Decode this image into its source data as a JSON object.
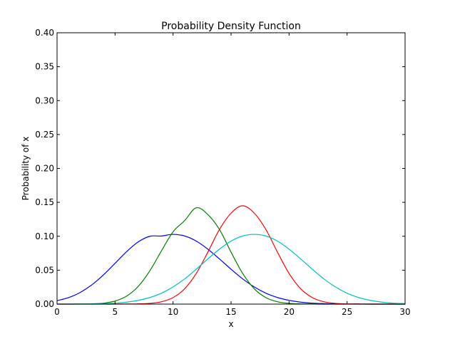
{
  "chart_data": {
    "type": "line",
    "title": "Probability Density Function",
    "xlabel": "x",
    "ylabel": "Probability of x",
    "xlim": [
      0,
      30
    ],
    "ylim": [
      0,
      0.4
    ],
    "xticks": [
      "0",
      "5",
      "10",
      "15",
      "20",
      "25",
      "30"
    ],
    "yticks": [
      "0.00",
      "0.05",
      "0.10",
      "0.15",
      "0.20",
      "0.25",
      "0.30",
      "0.35",
      "0.40"
    ],
    "grid": false,
    "legend": null,
    "x": [
      0,
      1,
      2,
      3,
      4,
      5,
      6,
      7,
      8,
      9,
      10,
      11,
      12,
      13,
      14,
      15,
      16,
      17,
      18,
      19,
      20,
      21,
      22,
      23,
      24,
      25,
      26,
      27,
      28,
      29,
      30
    ],
    "series": [
      {
        "color": "#0000ff",
        "values": [
          0.005,
          0.0096,
          0.0172,
          0.0284,
          0.0431,
          0.0602,
          0.0774,
          0.0917,
          0.1,
          0.1004,
          0.1028,
          0.1004,
          0.0929,
          0.081,
          0.0666,
          0.0514,
          0.0372,
          0.0253,
          0.0161,
          0.0097,
          0.0055,
          0.0029,
          0.0014,
          0.0007,
          0.0003,
          0.0001,
          0.0001,
          0.0,
          0.0,
          0.0,
          0.0
        ]
      },
      {
        "color": "#008000",
        "values": [
          0.0,
          0.0,
          0.0001,
          0.0004,
          0.0014,
          0.0045,
          0.0118,
          0.0261,
          0.0491,
          0.0785,
          0.1066,
          0.1231,
          0.142,
          0.132,
          0.11,
          0.0766,
          0.0452,
          0.0226,
          0.0096,
          0.0035,
          0.0011,
          0.0003,
          0.0001,
          0.0,
          0.0,
          0.0,
          0.0,
          0.0,
          0.0,
          0.0,
          0.0
        ]
      },
      {
        "color": "#ff0000",
        "values": [
          0.0,
          0.0,
          0.0,
          0.0,
          0.0,
          0.0,
          0.0001,
          0.0003,
          0.0011,
          0.0035,
          0.0096,
          0.0226,
          0.0452,
          0.0766,
          0.11,
          0.134,
          0.145,
          0.134,
          0.11,
          0.0766,
          0.0452,
          0.0226,
          0.0096,
          0.0035,
          0.0011,
          0.0003,
          0.0001,
          0.0,
          0.0,
          0.0,
          0.0
        ]
      },
      {
        "color": "#00bfbf",
        "values": [
          0.0,
          0.0,
          0.0001,
          0.0003,
          0.0007,
          0.0014,
          0.0029,
          0.0055,
          0.0097,
          0.0161,
          0.0253,
          0.0372,
          0.0514,
          0.0666,
          0.081,
          0.0929,
          0.1004,
          0.1028,
          0.1004,
          0.0929,
          0.081,
          0.0666,
          0.0514,
          0.0372,
          0.0253,
          0.0161,
          0.0097,
          0.0055,
          0.0029,
          0.0014,
          0.0007
        ]
      }
    ]
  }
}
